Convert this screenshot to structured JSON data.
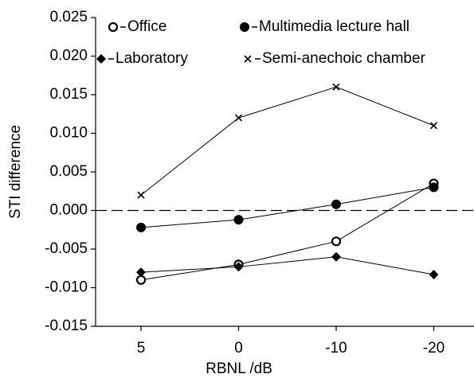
{
  "chart_data": {
    "type": "line",
    "x_label": "RBNL /dB",
    "y_label": "STI difference",
    "categories": [
      "5",
      "0",
      "-10",
      "-20"
    ],
    "series": [
      {
        "name": "Office",
        "color": "#000000",
        "marker": "open-circle",
        "values": [
          -0.009,
          -0.007,
          -0.004,
          0.0035
        ]
      },
      {
        "name": "Multimedia lecture hall",
        "color": "#000000",
        "marker": "filled-circle",
        "values": [
          -0.0022,
          -0.0012,
          0.0008,
          0.003
        ]
      },
      {
        "name": "Laboratory",
        "color": "#000000",
        "marker": "diamond",
        "values": [
          -0.008,
          -0.0073,
          -0.006,
          -0.0083
        ]
      },
      {
        "name": "Semi-anechoic chamber",
        "color": "#000000",
        "marker": "cross",
        "values": [
          0.002,
          0.012,
          0.016,
          0.011
        ]
      }
    ],
    "ylim": [
      -0.015,
      0.025
    ],
    "yticks": [
      {
        "value": -0.015,
        "label": "-0.015"
      },
      {
        "value": -0.01,
        "label": "-0.010"
      },
      {
        "value": -0.005,
        "label": "-0.005"
      },
      {
        "value": 0,
        "label": "0.000"
      },
      {
        "value": 0.005,
        "label": "0.005"
      },
      {
        "value": 0.01,
        "label": "0.010"
      },
      {
        "value": 0.015,
        "label": "0.015"
      },
      {
        "value": 0.02,
        "label": "0.020"
      },
      {
        "value": 0.025,
        "label": "0.025"
      }
    ],
    "reference_line": 0,
    "grid": false
  }
}
